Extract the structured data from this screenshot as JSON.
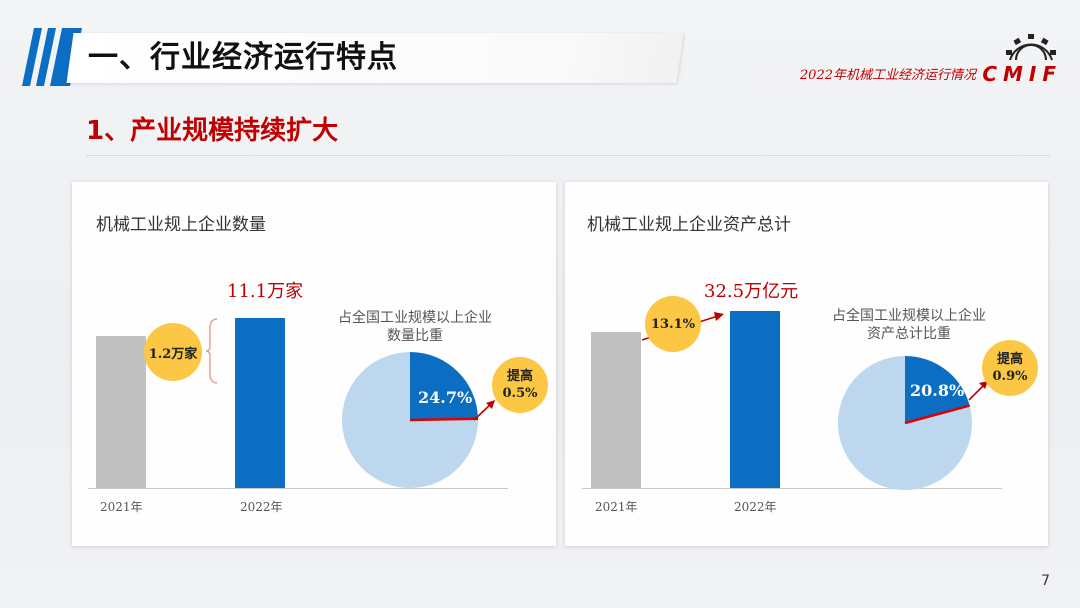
{
  "header": {
    "title": "一、行业经济运行特点",
    "report_name": "2022年机械工业经济运行情况",
    "logo_text": "CMIF"
  },
  "section": {
    "subtitle": "1、产业规模持续扩大"
  },
  "colors": {
    "accent_red": "#c00000",
    "blue": "#0b6ec2",
    "gray": "#c0c0c0",
    "pie_light": "#bdd7ee",
    "bubble": "#fcc744"
  },
  "left_card": {
    "title": "机械工业规上企业数量",
    "value_label": "11.1万家",
    "increase_bubble": "1.2万家",
    "share_caption_line1": "占全国工业规模以上企业",
    "share_caption_line2": "数量比重",
    "share_pct_label": "24.7%",
    "rise_bubble_line1": "提高",
    "rise_bubble_line2": "0.5%"
  },
  "right_card": {
    "title": "机械工业规上企业资产总计",
    "value_label": "32.5万亿元",
    "increase_bubble": "13.1%",
    "share_caption_line1": "占全国工业规模以上企业",
    "share_caption_line2": "资产总计比重",
    "share_pct_label": "20.8%",
    "rise_bubble_line1": "提高",
    "rise_bubble_line2": "0.9%"
  },
  "chart_data": [
    {
      "type": "bar",
      "categories": [
        "2021年",
        "2022年"
      ],
      "values": [
        9.9,
        11.1
      ],
      "unit": "万家"
    },
    {
      "type": "pie",
      "labels": [
        "24.7%",
        ""
      ],
      "values": [
        24.7,
        75.3
      ]
    },
    {
      "type": "bar",
      "categories": [
        "2021年",
        "2022年"
      ],
      "values": [
        28.7,
        32.5
      ],
      "unit": "万亿元"
    },
    {
      "type": "pie",
      "labels": [
        "20.8%",
        ""
      ],
      "values": [
        20.8,
        79.2
      ]
    }
  ],
  "page_number": "7"
}
